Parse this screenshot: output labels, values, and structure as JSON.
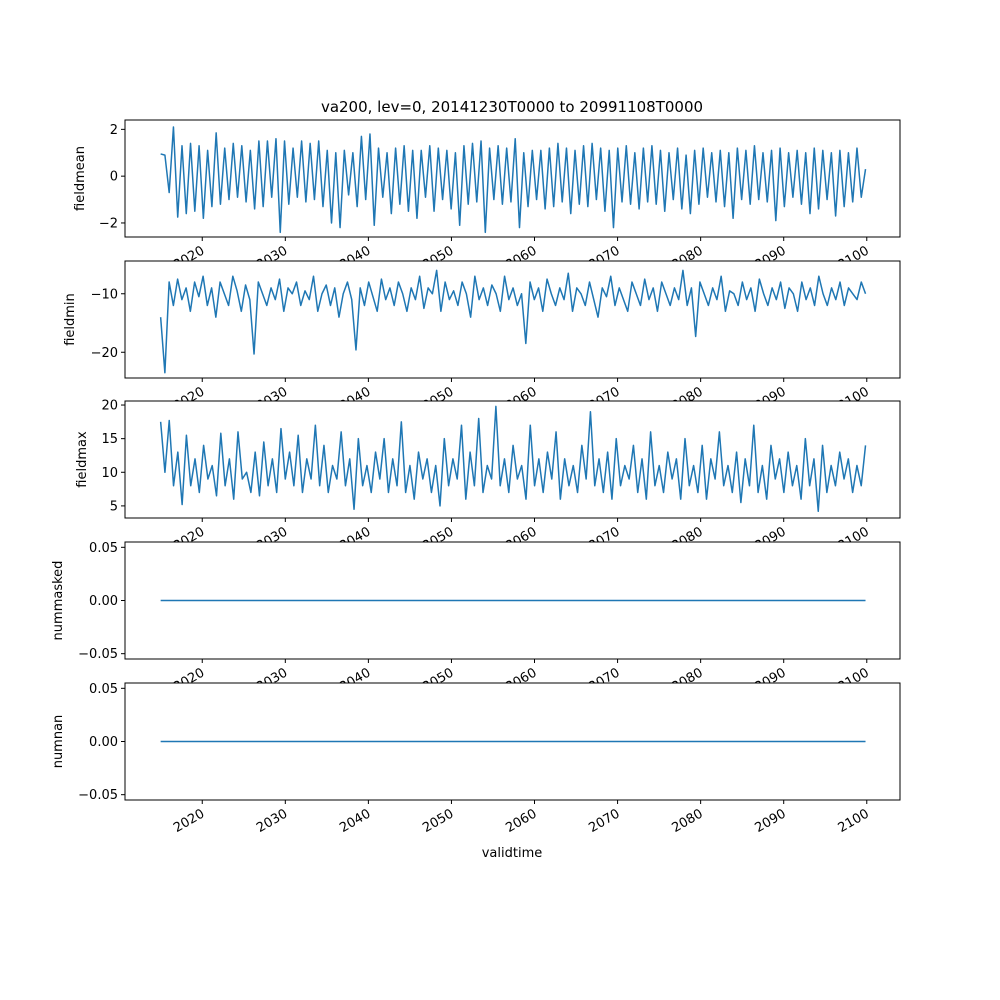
{
  "chart_data": {
    "type": "line",
    "title": "va200, lev=0, 20141230T0000 to 20991108T0000",
    "xlabel": "validtime",
    "xlim": [
      2010.7,
      2104.0
    ],
    "x_range": [
      2014.99,
      2099.85
    ],
    "xticks": [
      "2020",
      "2030",
      "2040",
      "2050",
      "2060",
      "2070",
      "2080",
      "2090",
      "2100"
    ],
    "xtick_values": [
      2020,
      2030,
      2040,
      2050,
      2060,
      2070,
      2080,
      2090,
      2100
    ],
    "line_color": "#1f77b4",
    "panels": [
      {
        "ylabel": "fieldmean",
        "ylim": [
          -2.6,
          2.4
        ],
        "yticks": [
          {
            "v": 2,
            "label": "2"
          },
          {
            "v": 0,
            "label": "0"
          },
          {
            "v": -2,
            "label": "−2"
          }
        ],
        "values": [
          0.95,
          0.9,
          -0.7,
          2.1,
          -1.75,
          1.3,
          -1.6,
          1.4,
          -1.5,
          1.3,
          -1.8,
          1.1,
          -1.3,
          1.85,
          -1.2,
          1.2,
          -1.0,
          1.4,
          -0.9,
          1.3,
          -1.1,
          1.1,
          -1.4,
          1.5,
          -1.3,
          1.5,
          -0.9,
          1.6,
          -2.4,
          1.5,
          -1.2,
          1.2,
          -0.9,
          1.5,
          -1.1,
          1.4,
          -1.0,
          1.5,
          -1.3,
          1.1,
          -2.0,
          1.0,
          -2.2,
          1.1,
          -0.8,
          1.0,
          -1.3,
          1.7,
          -1.0,
          1.8,
          -2.1,
          1.2,
          -0.9,
          1.0,
          -1.6,
          1.2,
          -1.2,
          1.3,
          -1.5,
          1.1,
          -1.8,
          1.1,
          -0.9,
          1.3,
          -1.5,
          1.2,
          -1.0,
          1.1,
          -1.4,
          1.0,
          -2.1,
          1.3,
          -1.2,
          1.4,
          -1.1,
          1.5,
          -2.4,
          1.2,
          -1.0,
          1.3,
          -1.2,
          1.2,
          -1.1,
          1.6,
          -2.2,
          1.0,
          -1.3,
          1.1,
          -1.0,
          1.1,
          -1.4,
          1.2,
          -1.3,
          1.4,
          -1.1,
          1.2,
          -1.6,
          1.1,
          -1.2,
          1.3,
          -1.3,
          1.4,
          -1.0,
          1.2,
          -1.5,
          1.1,
          -2.2,
          1.2,
          -1.1,
          1.3,
          -1.2,
          1.0,
          -1.4,
          1.2,
          -1.1,
          1.3,
          -1.2,
          1.1,
          -1.5,
          1.0,
          -1.0,
          1.2,
          -1.4,
          0.9,
          -1.6,
          1.1,
          -1.2,
          1.2,
          -0.9,
          1.0,
          -1.1,
          1.1,
          -1.3,
          1.0,
          -1.8,
          1.2,
          -1.0,
          1.1,
          -1.2,
          1.3,
          -1.0,
          1.0,
          -1.1,
          1.1,
          -1.9,
          1.2,
          -1.3,
          1.0,
          -0.9,
          1.1,
          -1.2,
          1.0,
          -1.6,
          1.2,
          -1.4,
          1.1,
          -1.0,
          1.0,
          -1.7,
          1.1,
          -1.3,
          1.0,
          -1.1,
          1.2,
          -0.9,
          0.3
        ]
      },
      {
        "ylabel": "fieldmin",
        "ylim": [
          -24.4,
          -4.4
        ],
        "yticks": [
          {
            "v": -10,
            "label": "−10"
          },
          {
            "v": -20,
            "label": "−20"
          }
        ],
        "values": [
          -14,
          -23.5,
          -8,
          -12,
          -7.5,
          -11,
          -9,
          -13,
          -8,
          -10.5,
          -7,
          -12,
          -9,
          -14,
          -8,
          -10,
          -12,
          -7,
          -9.5,
          -13,
          -8.5,
          -11,
          -20.3,
          -8,
          -10,
          -12,
          -9,
          -11,
          -7.5,
          -13,
          -9,
          -10,
          -8,
          -12,
          -9.5,
          -11,
          -7,
          -13,
          -10,
          -8.5,
          -12,
          -9,
          -14,
          -10,
          -8,
          -11,
          -19.6,
          -9,
          -12,
          -8,
          -10.5,
          -13,
          -7.5,
          -11,
          -9,
          -12,
          -8,
          -10,
          -13,
          -9,
          -11,
          -7,
          -12.5,
          -9,
          -10,
          -6,
          -13,
          -8,
          -11,
          -9.5,
          -12,
          -8,
          -10,
          -14,
          -7,
          -11,
          -9,
          -12,
          -8.5,
          -10,
          -13,
          -7,
          -11,
          -9,
          -12,
          -10,
          -18.5,
          -8,
          -11,
          -9,
          -13,
          -7.5,
          -10,
          -12,
          -9,
          -11,
          -6.5,
          -13,
          -9,
          -10,
          -12,
          -8,
          -11,
          -14,
          -9,
          -10.5,
          -7,
          -12,
          -9,
          -11,
          -13,
          -8,
          -10,
          -12,
          -7.5,
          -11,
          -9,
          -13,
          -8,
          -10,
          -12,
          -9,
          -11,
          -6,
          -12,
          -9,
          -17.3,
          -8,
          -10,
          -12,
          -9,
          -11,
          -7,
          -13,
          -9.5,
          -10,
          -12,
          -8,
          -11,
          -9,
          -13,
          -7.5,
          -10,
          -12,
          -9,
          -11,
          -8,
          -12.5,
          -9,
          -10,
          -13,
          -8,
          -11,
          -9,
          -12,
          -7,
          -10,
          -12,
          -9,
          -11,
          -8,
          -12,
          -9,
          -10,
          -11,
          -8,
          -10
        ]
      },
      {
        "ylabel": "fieldmax",
        "ylim": [
          3.2,
          20.6
        ],
        "yticks": [
          {
            "v": 20,
            "label": "20"
          },
          {
            "v": 15,
            "label": "15"
          },
          {
            "v": 10,
            "label": "10"
          },
          {
            "v": 5,
            "label": "5"
          }
        ],
        "values": [
          17.5,
          10,
          17.7,
          8,
          13,
          5.2,
          15.5,
          8,
          12,
          7,
          14,
          9,
          11,
          6.5,
          15.8,
          8,
          12,
          6,
          16,
          9,
          10,
          7,
          13,
          6.5,
          14.5,
          8,
          12,
          7,
          16.5,
          9,
          13,
          8,
          15.5,
          7,
          12,
          9,
          17,
          8,
          14,
          7,
          11,
          9,
          16,
          8,
          12,
          4.5,
          15,
          8,
          11,
          7,
          13,
          9,
          15,
          7,
          12,
          8,
          17.5,
          7,
          11,
          6,
          13,
          9,
          12,
          7,
          11,
          5,
          15,
          8,
          12,
          9,
          17,
          6,
          13,
          8,
          18,
          7,
          11,
          9,
          19.8,
          8,
          12,
          7,
          14,
          9,
          11,
          6,
          17,
          8,
          12,
          7,
          13,
          9,
          16,
          6,
          12,
          8,
          11,
          7,
          14,
          9,
          19,
          8,
          12,
          7,
          13,
          6,
          15,
          8,
          11,
          9,
          14,
          7,
          12,
          6,
          16,
          8,
          11,
          7,
          13,
          9,
          12,
          6,
          15,
          8,
          11,
          7,
          14,
          6,
          12,
          9,
          16,
          8,
          11,
          7,
          13,
          5.5,
          12,
          8,
          17,
          7,
          11,
          6,
          14,
          9,
          12,
          7,
          13,
          8,
          11,
          6,
          15,
          8,
          12,
          4.2,
          14,
          7,
          11,
          8,
          13,
          9,
          12,
          7,
          11,
          8,
          14
        ]
      },
      {
        "ylabel": "nummasked",
        "ylim": [
          -0.055,
          0.055
        ],
        "yticks": [
          {
            "v": 0.05,
            "label": "0.05"
          },
          {
            "v": 0,
            "label": "0.00"
          },
          {
            "v": -0.05,
            "label": "−0.05"
          }
        ],
        "values": [
          0,
          0
        ]
      },
      {
        "ylabel": "numnan",
        "ylim": [
          -0.055,
          0.055
        ],
        "yticks": [
          {
            "v": 0.05,
            "label": "0.05"
          },
          {
            "v": 0,
            "label": "0.00"
          },
          {
            "v": -0.05,
            "label": "−0.05"
          }
        ],
        "values": [
          0,
          0
        ]
      }
    ]
  }
}
